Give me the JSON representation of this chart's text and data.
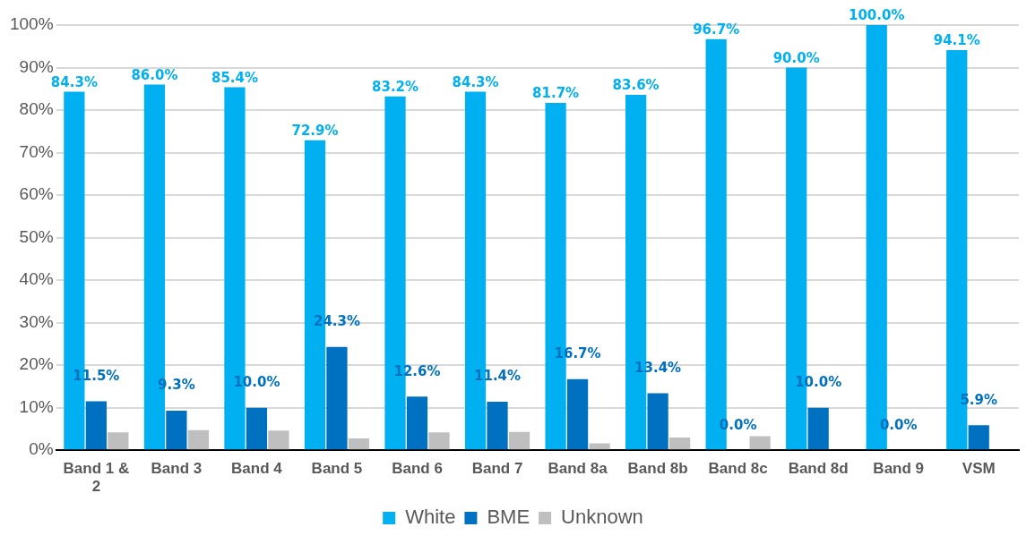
{
  "chart_data": {
    "type": "bar",
    "categories": [
      "Band 1 & 2",
      "Band 3",
      "Band 4",
      "Band 5",
      "Band 6",
      "Band 7",
      "Band 8a",
      "Band 8b",
      "Band 8c",
      "Band 8d",
      "Band 9",
      "VSM"
    ],
    "series": [
      {
        "name": "White",
        "color": "#00b0f0",
        "values": [
          84.3,
          86.0,
          85.4,
          72.9,
          83.2,
          84.3,
          81.7,
          83.6,
          96.7,
          90.0,
          100.0,
          94.1
        ],
        "value_labels": [
          "84.3%",
          "86.0%",
          "85.4%",
          "72.9%",
          "83.2%",
          "84.3%",
          "81.7%",
          "83.6%",
          "96.7%",
          "90.0%",
          "100.0%",
          "94.1%"
        ]
      },
      {
        "name": "BME",
        "color": "#0070c0",
        "values": [
          11.5,
          9.3,
          10.0,
          24.3,
          12.6,
          11.4,
          16.7,
          13.4,
          0.0,
          10.0,
          0.0,
          5.9
        ],
        "value_labels": [
          "11.5%",
          "9.3%",
          "10.0%",
          "24.3%",
          "12.6%",
          "11.4%",
          "16.7%",
          "13.4%",
          "0.0%",
          "10.0%",
          "0.0%",
          "5.9%"
        ]
      },
      {
        "name": "Unknown",
        "color": "#bfbfbf",
        "values": [
          4.2,
          4.7,
          4.6,
          2.8,
          4.2,
          4.3,
          1.6,
          3.0,
          3.3,
          0,
          0,
          0
        ]
      }
    ],
    "ylim": [
      0,
      100
    ],
    "yticks": [
      {
        "value": 0,
        "label": "0%"
      },
      {
        "value": 10,
        "label": "10%"
      },
      {
        "value": 20,
        "label": "20%"
      },
      {
        "value": 30,
        "label": "30%"
      },
      {
        "value": 40,
        "label": "40%"
      },
      {
        "value": 50,
        "label": "50%"
      },
      {
        "value": 60,
        "label": "60%"
      },
      {
        "value": 70,
        "label": "70%"
      },
      {
        "value": 80,
        "label": "80%"
      },
      {
        "value": 90,
        "label": "90%"
      },
      {
        "value": 100,
        "label": "100%"
      }
    ],
    "grid": "y",
    "legend": "bottom"
  }
}
